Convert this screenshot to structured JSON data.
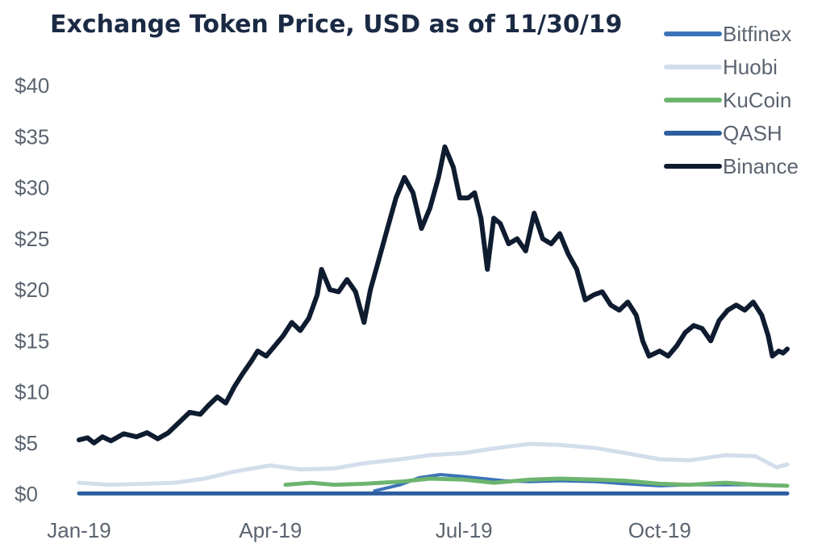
{
  "chart_data": {
    "type": "line",
    "title": "Exchange Token Price, USD as of 11/30/19",
    "xlabel": "",
    "ylabel": "",
    "x_range": [
      "2019-01-01",
      "2019-11-30"
    ],
    "ylim": [
      0,
      40
    ],
    "y_ticks": [
      {
        "value": 0,
        "label": "$0"
      },
      {
        "value": 5,
        "label": "$5"
      },
      {
        "value": 10,
        "label": "$10"
      },
      {
        "value": 15,
        "label": "$15"
      },
      {
        "value": 20,
        "label": "$20"
      },
      {
        "value": 25,
        "label": "$25"
      },
      {
        "value": 30,
        "label": "$30"
      },
      {
        "value": 35,
        "label": "$35"
      },
      {
        "value": 40,
        "label": "$40"
      }
    ],
    "x_ticks": [
      {
        "value": "2019-01-01",
        "label": "Jan-19"
      },
      {
        "value": "2019-04-01",
        "label": "Apr-19"
      },
      {
        "value": "2019-07-01",
        "label": "Jul-19"
      },
      {
        "value": "2019-10-01",
        "label": "Oct-19"
      }
    ],
    "grid": false,
    "legend_position": "top-right",
    "series": [
      {
        "name": "Bitfinex",
        "color": "#3b73b9",
        "points": [
          [
            "2019-05-20",
            0.3
          ],
          [
            "2019-06-01",
            0.9
          ],
          [
            "2019-06-10",
            1.6
          ],
          [
            "2019-06-20",
            1.9
          ],
          [
            "2019-07-01",
            1.7
          ],
          [
            "2019-07-10",
            1.5
          ],
          [
            "2019-07-20",
            1.3
          ],
          [
            "2019-08-01",
            1.2
          ],
          [
            "2019-08-15",
            1.3
          ],
          [
            "2019-09-01",
            1.2
          ],
          [
            "2019-09-15",
            1.0
          ],
          [
            "2019-10-01",
            0.8
          ],
          [
            "2019-10-15",
            0.9
          ],
          [
            "2019-11-01",
            0.9
          ],
          [
            "2019-11-15",
            0.9
          ],
          [
            "2019-11-30",
            0.8
          ]
        ]
      },
      {
        "name": "Huobi",
        "color": "#d3deeb",
        "points": [
          [
            "2019-01-01",
            1.1
          ],
          [
            "2019-01-15",
            0.9
          ],
          [
            "2019-02-01",
            1.0
          ],
          [
            "2019-02-15",
            1.1
          ],
          [
            "2019-03-01",
            1.5
          ],
          [
            "2019-03-15",
            2.2
          ],
          [
            "2019-04-01",
            2.8
          ],
          [
            "2019-04-15",
            2.4
          ],
          [
            "2019-05-01",
            2.5
          ],
          [
            "2019-05-15",
            3.0
          ],
          [
            "2019-06-01",
            3.4
          ],
          [
            "2019-06-15",
            3.8
          ],
          [
            "2019-07-01",
            4.0
          ],
          [
            "2019-07-10",
            4.3
          ],
          [
            "2019-07-20",
            4.6
          ],
          [
            "2019-08-01",
            4.9
          ],
          [
            "2019-08-15",
            4.8
          ],
          [
            "2019-09-01",
            4.5
          ],
          [
            "2019-09-15",
            4.0
          ],
          [
            "2019-10-01",
            3.4
          ],
          [
            "2019-10-15",
            3.3
          ],
          [
            "2019-11-01",
            3.8
          ],
          [
            "2019-11-15",
            3.7
          ],
          [
            "2019-11-25",
            2.6
          ],
          [
            "2019-11-30",
            2.9
          ]
        ]
      },
      {
        "name": "KuCoin",
        "color": "#6db56f",
        "points": [
          [
            "2019-04-08",
            0.9
          ],
          [
            "2019-04-20",
            1.1
          ],
          [
            "2019-05-01",
            0.9
          ],
          [
            "2019-05-15",
            1.0
          ],
          [
            "2019-06-01",
            1.2
          ],
          [
            "2019-06-15",
            1.5
          ],
          [
            "2019-07-01",
            1.4
          ],
          [
            "2019-07-15",
            1.1
          ],
          [
            "2019-08-01",
            1.4
          ],
          [
            "2019-08-15",
            1.5
          ],
          [
            "2019-09-01",
            1.4
          ],
          [
            "2019-09-15",
            1.3
          ],
          [
            "2019-10-01",
            1.0
          ],
          [
            "2019-10-15",
            0.9
          ],
          [
            "2019-11-01",
            1.1
          ],
          [
            "2019-11-15",
            0.9
          ],
          [
            "2019-11-30",
            0.8
          ]
        ]
      },
      {
        "name": "QASH",
        "color": "#2e5e9e",
        "points": [
          [
            "2019-01-01",
            0.05
          ],
          [
            "2019-03-01",
            0.05
          ],
          [
            "2019-05-01",
            0.05
          ],
          [
            "2019-07-01",
            0.05
          ],
          [
            "2019-09-01",
            0.05
          ],
          [
            "2019-11-30",
            0.05
          ]
        ]
      },
      {
        "name": "Binance",
        "color": "#0f1c30",
        "points": [
          [
            "2019-01-01",
            5.3
          ],
          [
            "2019-01-05",
            5.5
          ],
          [
            "2019-01-08",
            5.0
          ],
          [
            "2019-01-12",
            5.6
          ],
          [
            "2019-01-16",
            5.2
          ],
          [
            "2019-01-22",
            5.9
          ],
          [
            "2019-01-28",
            5.6
          ],
          [
            "2019-02-02",
            6.0
          ],
          [
            "2019-02-07",
            5.4
          ],
          [
            "2019-02-12",
            6.0
          ],
          [
            "2019-02-18",
            7.2
          ],
          [
            "2019-02-22",
            8.0
          ],
          [
            "2019-02-27",
            7.8
          ],
          [
            "2019-03-03",
            8.7
          ],
          [
            "2019-03-07",
            9.5
          ],
          [
            "2019-03-11",
            8.9
          ],
          [
            "2019-03-15",
            10.5
          ],
          [
            "2019-03-19",
            11.8
          ],
          [
            "2019-03-23",
            13.0
          ],
          [
            "2019-03-26",
            14.0
          ],
          [
            "2019-03-30",
            13.5
          ],
          [
            "2019-04-03",
            14.5
          ],
          [
            "2019-04-07",
            15.5
          ],
          [
            "2019-04-11",
            16.8
          ],
          [
            "2019-04-15",
            16.0
          ],
          [
            "2019-04-19",
            17.2
          ],
          [
            "2019-04-23",
            19.5
          ],
          [
            "2019-04-25",
            22.0
          ],
          [
            "2019-04-29",
            20.0
          ],
          [
            "2019-05-03",
            19.8
          ],
          [
            "2019-05-07",
            21.0
          ],
          [
            "2019-05-11",
            19.8
          ],
          [
            "2019-05-15",
            16.8
          ],
          [
            "2019-05-18",
            20.0
          ],
          [
            "2019-05-22",
            23.0
          ],
          [
            "2019-05-26",
            26.0
          ],
          [
            "2019-05-30",
            29.0
          ],
          [
            "2019-06-03",
            31.0
          ],
          [
            "2019-06-07",
            29.5
          ],
          [
            "2019-06-11",
            26.0
          ],
          [
            "2019-06-15",
            28.0
          ],
          [
            "2019-06-19",
            31.0
          ],
          [
            "2019-06-22",
            34.0
          ],
          [
            "2019-06-26",
            32.0
          ],
          [
            "2019-06-29",
            29.0
          ],
          [
            "2019-07-03",
            29.0
          ],
          [
            "2019-07-06",
            29.5
          ],
          [
            "2019-07-09",
            27.0
          ],
          [
            "2019-07-12",
            22.0
          ],
          [
            "2019-07-15",
            27.0
          ],
          [
            "2019-07-18",
            26.5
          ],
          [
            "2019-07-22",
            24.5
          ],
          [
            "2019-07-26",
            25.0
          ],
          [
            "2019-07-30",
            23.8
          ],
          [
            "2019-08-03",
            27.5
          ],
          [
            "2019-08-07",
            25.0
          ],
          [
            "2019-08-11",
            24.5
          ],
          [
            "2019-08-15",
            25.5
          ],
          [
            "2019-08-19",
            23.5
          ],
          [
            "2019-08-23",
            22.0
          ],
          [
            "2019-08-27",
            19.0
          ],
          [
            "2019-08-31",
            19.5
          ],
          [
            "2019-09-04",
            19.8
          ],
          [
            "2019-09-08",
            18.5
          ],
          [
            "2019-09-12",
            18.0
          ],
          [
            "2019-09-16",
            18.8
          ],
          [
            "2019-09-20",
            17.5
          ],
          [
            "2019-09-23",
            15.0
          ],
          [
            "2019-09-26",
            13.5
          ],
          [
            "2019-10-01",
            14.0
          ],
          [
            "2019-10-05",
            13.5
          ],
          [
            "2019-10-09",
            14.5
          ],
          [
            "2019-10-13",
            15.8
          ],
          [
            "2019-10-17",
            16.5
          ],
          [
            "2019-10-21",
            16.2
          ],
          [
            "2019-10-25",
            15.0
          ],
          [
            "2019-10-29",
            17.0
          ],
          [
            "2019-11-02",
            18.0
          ],
          [
            "2019-11-06",
            18.5
          ],
          [
            "2019-11-10",
            18.0
          ],
          [
            "2019-11-14",
            18.8
          ],
          [
            "2019-11-18",
            17.5
          ],
          [
            "2019-11-21",
            15.5
          ],
          [
            "2019-11-23",
            13.5
          ],
          [
            "2019-11-26",
            14.0
          ],
          [
            "2019-11-28",
            13.8
          ],
          [
            "2019-11-30",
            14.2
          ]
        ]
      }
    ]
  }
}
